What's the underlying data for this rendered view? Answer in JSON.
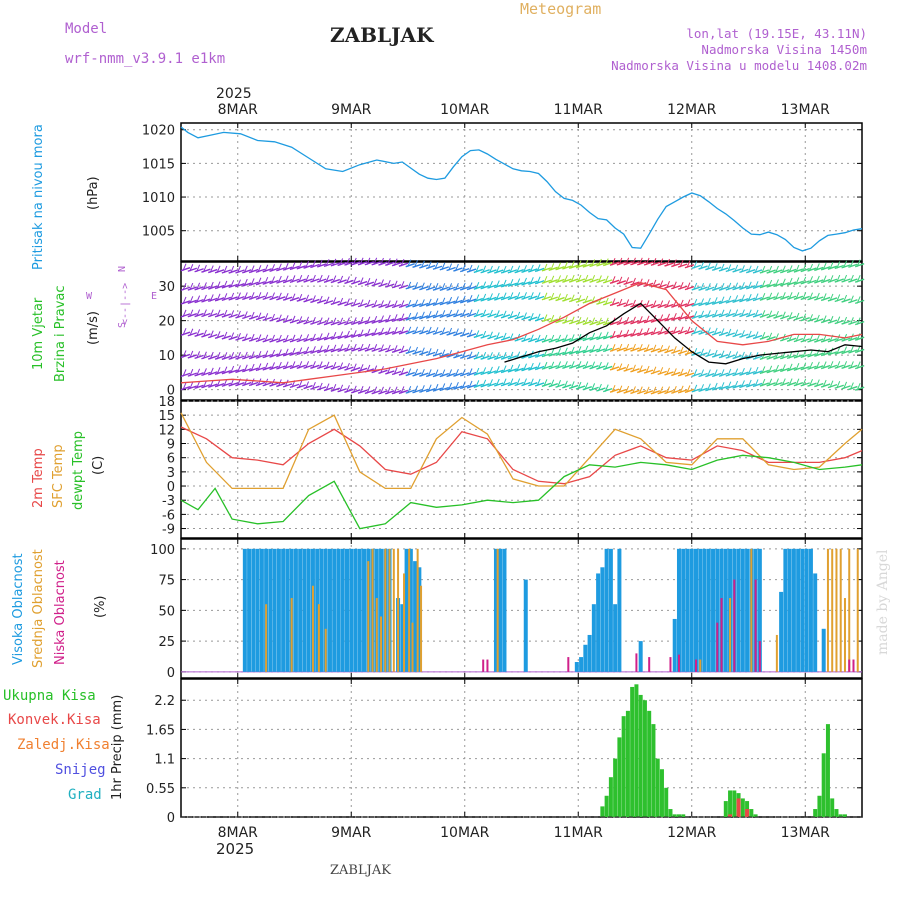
{
  "header": {
    "model_label": "Model",
    "model_value": "wrf-nmm_v3.9.1 e1km",
    "station": "ZABLJAK",
    "meteogram": "Meteogram",
    "lonlat": "lon,lat (19.15E, 43.11N)",
    "elevation": "Nadmorska Visina 1450m",
    "model_elevation": "Nadmorska Visina u modelu 1408.02m",
    "footer_station": "ZABLJAK",
    "credit": "made by Angel"
  },
  "colors": {
    "pressure": "#1e9be0",
    "temp2m": "#e84848",
    "sfc": "#e0a030",
    "dewpt": "#28c028",
    "high_cloud": "#1e9be0",
    "mid_cloud": "#e0a030",
    "low_cloud": "#d0208a",
    "total_precip": "#2ec02e",
    "conv_precip": "#e84848",
    "frozen": "#f08030",
    "snow": "#5050e0",
    "hail": "#20b0c0",
    "title_purple": "#b060d0",
    "meteogram_orange": "#e0b060"
  },
  "time_axis": {
    "year": "2025",
    "days": [
      "8MAR",
      "9MAR",
      "10MAR",
      "11MAR",
      "12MAR",
      "13MAR"
    ]
  },
  "chart_data": [
    {
      "type": "line",
      "panel": "pressure",
      "ylabel": "Pritisak na nivou mora",
      "unit": "(hPa)",
      "yticks": [
        1005,
        1010,
        1015,
        1020
      ],
      "ylim": [
        1000.5,
        1021
      ],
      "series": [
        {
          "color_key": "pressure",
          "x": [
            0,
            0.08,
            0.2,
            0.35,
            0.5,
            0.7,
            0.9,
            1.1,
            1.3,
            1.5,
            1.7,
            1.9,
            2.1,
            2.3,
            2.5,
            2.6,
            2.7,
            2.8,
            2.9,
            3.0,
            3.1,
            3.2,
            3.3,
            3.4,
            3.5,
            3.6,
            3.7,
            3.8,
            3.9,
            4.0,
            4.1,
            4.2,
            4.3,
            4.4,
            4.5,
            4.6,
            4.7,
            4.8,
            4.9,
            5.0,
            5.1,
            5.2,
            5.3,
            5.4,
            5.5,
            5.6,
            5.7,
            5.8,
            5.9,
            6.0,
            6.1,
            6.2,
            6.3,
            6.4,
            6.5,
            6.6,
            6.7,
            6.8,
            6.9,
            7.0,
            7.1,
            7.2,
            7.3,
            7.4,
            7.5,
            7.6,
            7.7,
            7.8,
            7.9,
            8.0
          ],
          "y": [
            1020.4,
            1019.6,
            1018.8,
            1019.2,
            1019.6,
            1019.4,
            1018.4,
            1018.2,
            1017.4,
            1015.8,
            1014.2,
            1013.8,
            1014.8,
            1015.5,
            1015.0,
            1015.2,
            1014.3,
            1013.4,
            1012.8,
            1012.6,
            1012.8,
            1014.5,
            1016.0,
            1016.9,
            1017.0,
            1016.4,
            1015.6,
            1014.9,
            1014.2,
            1013.9,
            1013.8,
            1013.5,
            1012.3,
            1010.8,
            1009.8,
            1009.5,
            1008.8,
            1007.7,
            1006.8,
            1006.6,
            1005.4,
            1004.5,
            1002.5,
            1002.4,
            1004.5,
            1006.7,
            1008.6,
            1009.3,
            1010.0,
            1010.6,
            1010.2,
            1009.3,
            1008.3,
            1007.5,
            1006.5,
            1005.4,
            1004.5,
            1004.4,
            1004.8,
            1004.4,
            1003.7,
            1002.5,
            1002.0,
            1002.4,
            1003.5,
            1004.3,
            1004.5,
            1004.7,
            1005.1,
            1005.3
          ]
        }
      ]
    },
    {
      "type": "line",
      "panel": "wind",
      "ylabel1": "10m Vjetar",
      "ylabel2": "Brzina i Pravac",
      "unit": "(m/s)",
      "direction_legend": [
        "S",
        "W",
        "N",
        "E",
        "<--|-->"
      ],
      "yticks": [
        0,
        10,
        20,
        30
      ],
      "ylim": [
        -3,
        37
      ],
      "series": [
        {
          "name": "mean",
          "color_key": "black",
          "x": [
            3.8,
            4.0,
            4.2,
            4.4,
            4.6,
            4.8,
            5.0,
            5.2,
            5.4,
            5.6,
            5.8,
            6.0,
            6.2,
            6.4,
            6.6,
            6.8,
            7.0,
            7.2,
            7.4,
            7.6,
            7.8,
            8.0
          ],
          "y": [
            8.0,
            9.5,
            11.0,
            12.0,
            13.5,
            16.5,
            18.5,
            22.0,
            25.0,
            20.0,
            15.0,
            11.0,
            8.0,
            7.5,
            9.0,
            10.0,
            10.5,
            11.0,
            11.5,
            11.0,
            13.0,
            12.5
          ]
        },
        {
          "name": "gust",
          "color_key": "temp2m",
          "x": [
            0,
            0.3,
            0.6,
            0.9,
            1.2,
            1.5,
            1.8,
            2.1,
            2.4,
            2.7,
            3.0,
            3.3,
            3.6,
            3.9,
            4.2,
            4.5,
            4.8,
            5.1,
            5.4,
            5.7,
            6.0,
            6.3,
            6.6,
            6.9,
            7.2,
            7.5,
            7.8,
            8.0
          ],
          "y": [
            2.0,
            2.5,
            3.0,
            2.5,
            2.0,
            3.0,
            4.0,
            5.0,
            6.0,
            7.5,
            9.0,
            11.0,
            13.0,
            14.5,
            17.5,
            21.0,
            25.0,
            28.0,
            31.0,
            29.0,
            20.0,
            14.0,
            13.0,
            14.0,
            16.0,
            16.0,
            15.0,
            16.0
          ]
        }
      ]
    },
    {
      "type": "line",
      "panel": "temperature",
      "labels": [
        "2m Temp",
        "SFC Temp",
        "dewpt Temp"
      ],
      "unit": "(C)",
      "yticks": [
        -9,
        -6,
        -3,
        0,
        3,
        6,
        9,
        12,
        15,
        18
      ],
      "ylim": [
        -11,
        18
      ],
      "series": [
        {
          "name": "2m Temp",
          "color_key": "temp2m",
          "x": [
            0,
            0.3,
            0.6,
            0.9,
            1.2,
            1.5,
            1.8,
            2.1,
            2.4,
            2.7,
            3.0,
            3.3,
            3.6,
            3.9,
            4.2,
            4.5,
            4.8,
            5.1,
            5.4,
            5.7,
            6.0,
            6.3,
            6.6,
            6.9,
            7.2,
            7.5,
            7.8,
            8.0
          ],
          "y": [
            12.5,
            10.0,
            6.0,
            5.5,
            4.5,
            9.0,
            12.0,
            8.5,
            3.5,
            2.5,
            5.0,
            11.5,
            10.0,
            3.5,
            1.0,
            0.5,
            2.0,
            6.5,
            8.5,
            6.0,
            5.5,
            8.5,
            7.5,
            5.0,
            5.0,
            5.0,
            6.0,
            7.5
          ]
        },
        {
          "name": "SFC Temp",
          "color_key": "sfc",
          "x": [
            0,
            0.3,
            0.6,
            0.9,
            1.2,
            1.5,
            1.8,
            2.1,
            2.4,
            2.7,
            3.0,
            3.3,
            3.6,
            3.9,
            4.2,
            4.5,
            4.8,
            5.1,
            5.4,
            5.7,
            6.0,
            6.3,
            6.6,
            6.9,
            7.2,
            7.5,
            7.8,
            8.0
          ],
          "y": [
            15.5,
            5.0,
            -0.5,
            -0.5,
            -0.5,
            12.0,
            15.0,
            3.0,
            -0.5,
            -0.5,
            10.0,
            14.5,
            11.0,
            1.5,
            0.0,
            0.0,
            6.0,
            12.0,
            10.0,
            5.0,
            4.5,
            10.0,
            10.0,
            4.5,
            3.5,
            4.0,
            9.0,
            12.0
          ]
        },
        {
          "name": "dewpt Temp",
          "color_key": "dewpt",
          "x": [
            0,
            0.2,
            0.4,
            0.6,
            0.9,
            1.2,
            1.5,
            1.8,
            2.1,
            2.4,
            2.7,
            3.0,
            3.3,
            3.6,
            3.9,
            4.2,
            4.5,
            4.8,
            5.1,
            5.4,
            5.7,
            6.0,
            6.3,
            6.6,
            6.9,
            7.2,
            7.5,
            7.8,
            8.0
          ],
          "y": [
            -3.0,
            -5.0,
            -0.5,
            -7.0,
            -8.0,
            -7.5,
            -2.0,
            1.0,
            -9.0,
            -8.0,
            -3.5,
            -4.5,
            -4.0,
            -3.0,
            -3.5,
            -3.0,
            2.0,
            4.5,
            4.0,
            5.0,
            4.5,
            3.5,
            5.5,
            6.5,
            6.0,
            5.0,
            3.5,
            4.0,
            4.5
          ]
        }
      ]
    },
    {
      "type": "bar",
      "panel": "clouds",
      "labels": [
        "Visoka Oblacnost",
        "Srednja Oblacnost",
        "Niska Oblacnost"
      ],
      "unit": "(%)",
      "yticks": [
        0,
        25,
        50,
        75,
        100
      ],
      "ylim": [
        -5,
        108
      ],
      "series": [
        {
          "name": "Visoka Oblacnost",
          "color_key": "high_cloud",
          "x": [
            0.75,
            0.8,
            0.85,
            0.9,
            0.95,
            1.0,
            1.05,
            1.1,
            1.15,
            1.2,
            1.25,
            1.3,
            1.35,
            1.4,
            1.45,
            1.5,
            1.55,
            1.6,
            1.65,
            1.7,
            1.75,
            1.8,
            1.85,
            1.9,
            1.95,
            2.0,
            2.05,
            2.1,
            2.15,
            2.2,
            2.25,
            2.3,
            2.35,
            2.4,
            2.45,
            2.55,
            2.6,
            2.65,
            2.7,
            2.75,
            2.8,
            3.7,
            3.75,
            3.8,
            4.05,
            4.65,
            4.7,
            4.75,
            4.8,
            4.85,
            4.9,
            4.95,
            5.0,
            5.05,
            5.1,
            5.15,
            5.4,
            5.8,
            5.85,
            5.9,
            5.95,
            6.0,
            6.05,
            6.1,
            6.15,
            6.2,
            6.25,
            6.3,
            6.35,
            6.4,
            6.45,
            6.5,
            6.55,
            6.6,
            6.65,
            6.7,
            6.75,
            6.8,
            7.05,
            7.1,
            7.15,
            7.2,
            7.25,
            7.3,
            7.35,
            7.4,
            7.45,
            7.55
          ],
          "values": [
            100,
            100,
            100,
            100,
            100,
            100,
            100,
            100,
            100,
            100,
            100,
            100,
            100,
            100,
            100,
            100,
            100,
            100,
            100,
            100,
            100,
            100,
            100,
            100,
            100,
            100,
            100,
            100,
            100,
            100,
            100,
            100,
            100,
            100,
            100,
            60,
            55,
            100,
            100,
            90,
            85,
            100,
            100,
            100,
            75,
            8,
            12,
            22,
            30,
            55,
            80,
            85,
            100,
            100,
            55,
            100,
            25,
            43,
            100,
            100,
            100,
            100,
            100,
            100,
            100,
            100,
            100,
            100,
            100,
            100,
            100,
            100,
            100,
            100,
            100,
            100,
            100,
            100,
            65,
            100,
            100,
            100,
            100,
            100,
            100,
            100,
            80,
            35
          ]
        },
        {
          "name": "Srednja Oblacnost",
          "color_key": "mid_cloud",
          "x": [
            1.0,
            1.3,
            1.55,
            1.62,
            1.7,
            2.2,
            2.25,
            2.3,
            2.35,
            2.4,
            2.45,
            2.5,
            2.55,
            2.62,
            2.68,
            2.72,
            2.78,
            2.82,
            3.72,
            6.1,
            6.45,
            6.7,
            7.0,
            7.6,
            7.65,
            7.7,
            7.75,
            7.8,
            7.85,
            7.9,
            7.95
          ],
          "values": [
            55,
            60,
            70,
            55,
            35,
            90,
            100,
            60,
            45,
            100,
            100,
            100,
            100,
            80,
            100,
            40,
            100,
            70,
            100,
            10,
            60,
            100,
            30,
            100,
            100,
            100,
            100,
            60,
            100,
            10,
            100
          ]
        },
        {
          "name": "Niska Oblacnost",
          "color_key": "low_cloud",
          "x": [
            3.55,
            3.6,
            4.55,
            5.35,
            5.5,
            5.75,
            5.85,
            6.05,
            6.3,
            6.35,
            6.5,
            6.75,
            6.8,
            7.85,
            7.9
          ],
          "values": [
            10,
            10,
            12,
            15,
            12,
            12,
            14,
            10,
            40,
            60,
            75,
            75,
            25,
            10,
            10
          ]
        }
      ]
    },
    {
      "type": "bar",
      "panel": "precipitation",
      "labels": [
        "Ukupna Kisa",
        "Konvek.Kisa",
        "Zaledj.Kisa",
        "Snijeg",
        "Grad"
      ],
      "ylabel": "1hr Precip (mm)",
      "yticks": [
        0,
        0.55,
        1.1,
        1.65,
        2.2
      ],
      "ylim": [
        0,
        2.6
      ],
      "series": [
        {
          "name": "Ukupna Kisa",
          "color_key": "total_precip",
          "x": [
            4.95,
            5.0,
            5.05,
            5.1,
            5.15,
            5.2,
            5.25,
            5.3,
            5.35,
            5.4,
            5.45,
            5.5,
            5.55,
            5.6,
            5.65,
            5.7,
            5.75,
            5.8,
            5.85,
            5.9,
            6.4,
            6.45,
            6.5,
            6.55,
            6.6,
            6.65,
            6.7,
            6.75,
            7.45,
            7.5,
            7.55,
            7.6,
            7.65,
            7.7,
            7.75,
            7.8
          ],
          "values": [
            0.2,
            0.4,
            0.75,
            1.1,
            1.5,
            1.9,
            2.0,
            2.45,
            2.5,
            2.3,
            2.2,
            2.0,
            1.75,
            1.1,
            0.9,
            0.55,
            0.15,
            0.05,
            0.05,
            0.05,
            0.3,
            0.5,
            0.5,
            0.45,
            0.35,
            0.3,
            0.15,
            0.05,
            0.15,
            0.4,
            1.2,
            1.75,
            0.35,
            0.15,
            0.05,
            0.05
          ]
        },
        {
          "name": "Konvek.Kisa",
          "color_key": "conv_precip",
          "x": [
            6.45,
            6.55,
            6.65
          ],
          "values": [
            0.05,
            0.35,
            0.15
          ]
        }
      ]
    }
  ]
}
